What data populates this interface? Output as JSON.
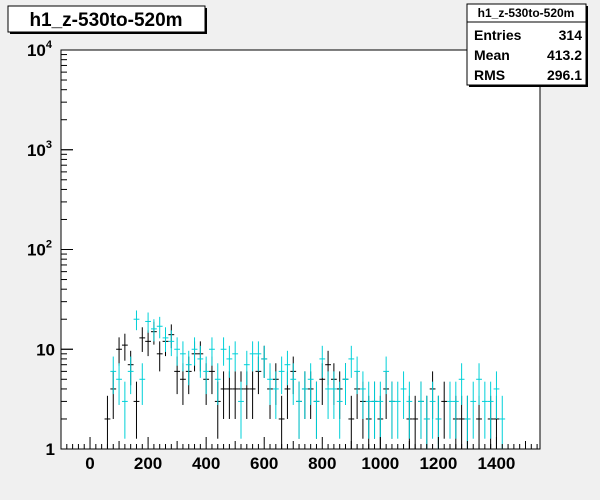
{
  "chart_data": {
    "type": "histogram",
    "title": "h1_z-530to-520m",
    "scale": "log-y",
    "xlim": [
      -100,
      1550
    ],
    "ylim": [
      1,
      10000
    ],
    "x_ticks": [
      0,
      200,
      400,
      600,
      800,
      1000,
      1200,
      1400
    ],
    "y_ticks": [
      {
        "value": 1,
        "base": "1",
        "exp": ""
      },
      {
        "value": 10,
        "base": "10",
        "exp": ""
      },
      {
        "value": 100,
        "base": "10",
        "exp": "2"
      },
      {
        "value": 1000,
        "base": "10",
        "exp": "3"
      },
      {
        "value": 10000,
        "base": "10",
        "exp": "4"
      }
    ],
    "bin_width": 20,
    "series": [
      {
        "color": "#000000",
        "points": [
          [
            60,
            2
          ],
          [
            80,
            4
          ],
          [
            100,
            10
          ],
          [
            120,
            11
          ],
          [
            140,
            7
          ],
          [
            160,
            3
          ],
          [
            180,
            13
          ],
          [
            200,
            12
          ],
          [
            220,
            15
          ],
          [
            240,
            9
          ],
          [
            260,
            12
          ],
          [
            280,
            14
          ],
          [
            300,
            6
          ],
          [
            320,
            5
          ],
          [
            340,
            6
          ],
          [
            360,
            9
          ],
          [
            380,
            9
          ],
          [
            400,
            5
          ],
          [
            420,
            6
          ],
          [
            440,
            3
          ],
          [
            460,
            4
          ],
          [
            480,
            4
          ],
          [
            500,
            4
          ],
          [
            520,
            4
          ],
          [
            540,
            4
          ],
          [
            560,
            4
          ],
          [
            580,
            6
          ],
          [
            600,
            8
          ],
          [
            620,
            4
          ],
          [
            640,
            5
          ],
          [
            660,
            2
          ],
          [
            680,
            4
          ],
          [
            700,
            6
          ],
          [
            720,
            3
          ],
          [
            740,
            4
          ],
          [
            760,
            4
          ],
          [
            780,
            3
          ],
          [
            800,
            5
          ],
          [
            820,
            7
          ],
          [
            840,
            5
          ],
          [
            860,
            4
          ],
          [
            880,
            5
          ],
          [
            900,
            2
          ],
          [
            920,
            4
          ],
          [
            940,
            3
          ],
          [
            960,
            2
          ],
          [
            980,
            3
          ],
          [
            1000,
            2
          ],
          [
            1020,
            4
          ],
          [
            1040,
            3
          ],
          [
            1100,
            2
          ],
          [
            1120,
            2
          ],
          [
            1140,
            3
          ],
          [
            1160,
            2
          ],
          [
            1180,
            4
          ],
          [
            1200,
            2
          ],
          [
            1220,
            3
          ],
          [
            1260,
            2
          ],
          [
            1280,
            2
          ],
          [
            1300,
            2
          ],
          [
            1340,
            2
          ],
          [
            1380,
            2
          ],
          [
            1400,
            2
          ]
        ]
      },
      {
        "color": "#00d0d8",
        "points": [
          [
            80,
            6
          ],
          [
            100,
            5
          ],
          [
            120,
            3
          ],
          [
            140,
            6
          ],
          [
            160,
            20
          ],
          [
            180,
            5
          ],
          [
            200,
            19
          ],
          [
            220,
            16
          ],
          [
            240,
            17
          ],
          [
            260,
            13
          ],
          [
            280,
            12
          ],
          [
            300,
            10
          ],
          [
            320,
            9
          ],
          [
            340,
            7
          ],
          [
            360,
            10
          ],
          [
            380,
            8
          ],
          [
            400,
            6
          ],
          [
            420,
            10
          ],
          [
            440,
            5
          ],
          [
            460,
            10
          ],
          [
            480,
            8
          ],
          [
            500,
            9
          ],
          [
            520,
            3
          ],
          [
            540,
            7
          ],
          [
            560,
            9
          ],
          [
            580,
            9
          ],
          [
            600,
            8
          ],
          [
            620,
            5
          ],
          [
            640,
            4
          ],
          [
            660,
            6
          ],
          [
            680,
            7
          ],
          [
            700,
            5
          ],
          [
            720,
            3
          ],
          [
            740,
            4
          ],
          [
            760,
            5
          ],
          [
            780,
            3
          ],
          [
            800,
            8
          ],
          [
            820,
            4
          ],
          [
            840,
            4
          ],
          [
            860,
            3
          ],
          [
            880,
            5
          ],
          [
            900,
            8
          ],
          [
            920,
            6
          ],
          [
            940,
            4
          ],
          [
            960,
            3
          ],
          [
            980,
            3
          ],
          [
            1000,
            3
          ],
          [
            1020,
            6
          ],
          [
            1040,
            3
          ],
          [
            1060,
            3
          ],
          [
            1080,
            4
          ],
          [
            1100,
            3
          ],
          [
            1140,
            3
          ],
          [
            1160,
            2
          ],
          [
            1180,
            3
          ],
          [
            1200,
            2
          ],
          [
            1240,
            3
          ],
          [
            1260,
            3
          ],
          [
            1280,
            5
          ],
          [
            1300,
            2
          ],
          [
            1320,
            3
          ],
          [
            1340,
            5
          ],
          [
            1360,
            3
          ],
          [
            1380,
            3
          ],
          [
            1400,
            4
          ],
          [
            1420,
            2
          ]
        ]
      }
    ]
  },
  "stats": {
    "name": "h1_z-530to-520m",
    "rows": [
      {
        "label": "Entries",
        "value": "314"
      },
      {
        "label": "Mean",
        "value": "413.2"
      },
      {
        "label": "RMS",
        "value": "296.1"
      }
    ]
  }
}
